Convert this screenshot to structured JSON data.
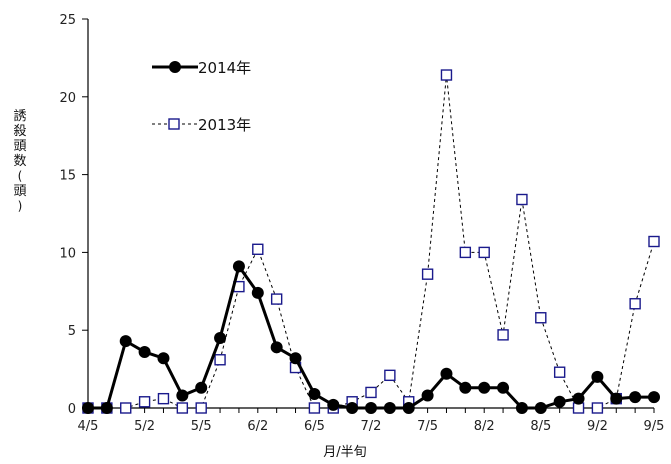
{
  "chart_data": {
    "type": "line",
    "ylabel": "誘殺頭数(頭)",
    "xlabel": "月/半旬",
    "ylim": [
      0,
      25
    ],
    "yticks": [
      0,
      5,
      10,
      15,
      20,
      25
    ],
    "grid": false,
    "legend_position": "top-left",
    "categories": [
      "4/5",
      "4/6",
      "5/1",
      "5/2",
      "5/3",
      "5/4",
      "5/5",
      "5/6",
      "6/1",
      "6/2",
      "6/3",
      "6/4",
      "6/5",
      "6/6",
      "7/1",
      "7/2",
      "7/3",
      "7/4",
      "7/5",
      "7/6",
      "8/1",
      "8/2",
      "8/3",
      "8/4",
      "8/5",
      "8/6",
      "9/1",
      "9/2",
      "9/3",
      "9/4",
      "9/5"
    ],
    "xtick_labels": [
      "4/5",
      "5/2",
      "5/5",
      "6/2",
      "6/5",
      "7/2",
      "7/5",
      "8/2",
      "8/5",
      "9/2",
      "9/5"
    ],
    "series": [
      {
        "name": "2014年",
        "style": "solid",
        "marker": "filled-circle",
        "color": "#000000",
        "values": [
          0,
          0,
          4.3,
          3.6,
          3.2,
          0.8,
          1.3,
          4.5,
          9.1,
          7.4,
          3.9,
          3.2,
          0.9,
          0.2,
          0,
          0,
          0,
          0,
          0.8,
          2.2,
          1.3,
          1.3,
          1.3,
          0,
          0,
          0.4,
          0.6,
          2.0,
          0.6,
          0.7,
          0.7
        ]
      },
      {
        "name": "2013年",
        "style": "dashed",
        "marker": "open-square",
        "color": "#1a1a8c",
        "values": [
          0,
          0,
          0,
          0.4,
          0.6,
          0,
          0,
          3.1,
          7.8,
          10.2,
          7.0,
          2.6,
          0,
          0,
          0.4,
          1.0,
          2.1,
          0.4,
          8.6,
          21.4,
          10.0,
          10.0,
          4.7,
          13.4,
          5.8,
          2.3,
          0,
          0,
          0.6,
          6.7,
          10.7
        ]
      }
    ]
  }
}
